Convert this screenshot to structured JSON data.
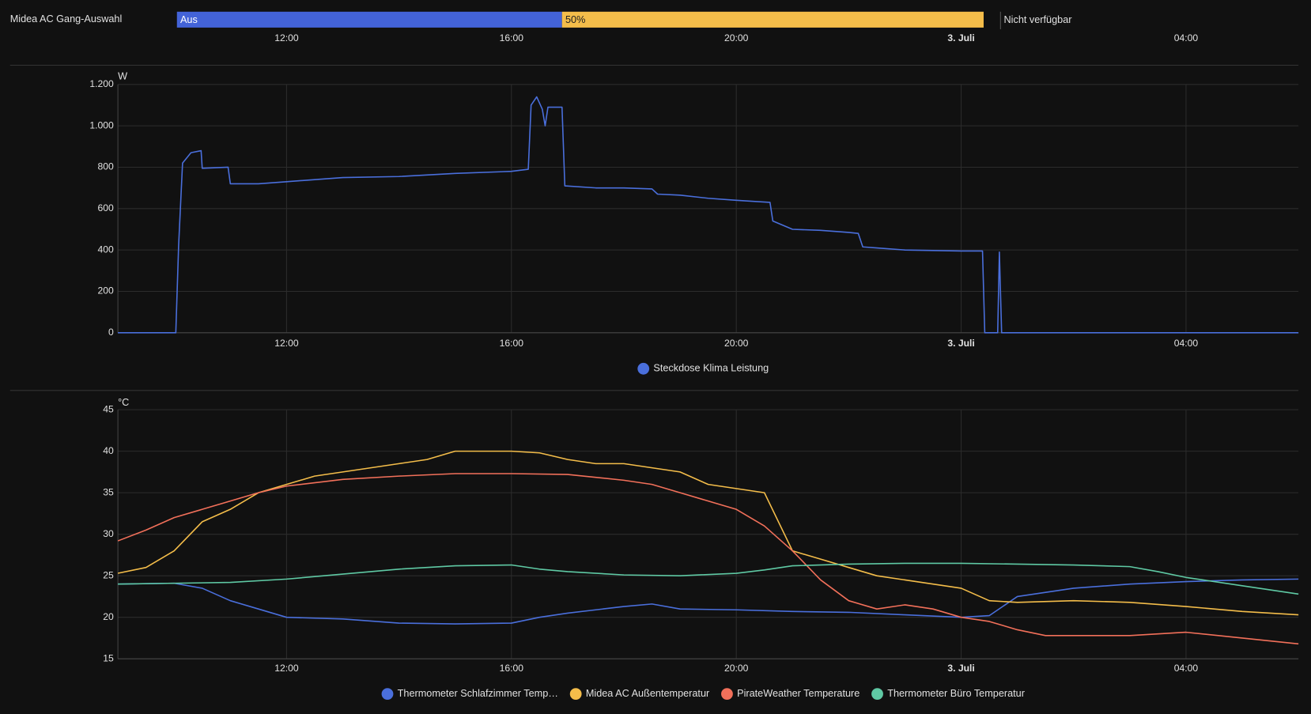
{
  "chart_data": [
    {
      "type": "timeline",
      "title": "Midea AC Gang-Auswahl",
      "xlim": [
        9,
        30
      ],
      "xticks": [
        {
          "value": 12,
          "label": "12:00"
        },
        {
          "value": 16,
          "label": "16:00"
        },
        {
          "value": 20,
          "label": "20:00"
        },
        {
          "value": 24,
          "label": "3. Juli"
        },
        {
          "value": 28,
          "label": "04:00"
        }
      ],
      "segments": [
        {
          "label": "Aus",
          "start": 10.05,
          "end": 16.9,
          "color": "#4363d8"
        },
        {
          "label": "50%",
          "start": 16.9,
          "end": 24.4,
          "color": "#f4bd4a"
        },
        {
          "label": "Nicht verfügbar",
          "start": 24.7
        }
      ]
    },
    {
      "type": "line",
      "y_label": "W",
      "xlim": [
        9,
        30
      ],
      "ylim": [
        0,
        1200
      ],
      "grid": true,
      "xticks": [
        {
          "value": 12,
          "label": "12:00"
        },
        {
          "value": 16,
          "label": "16:00"
        },
        {
          "value": 20,
          "label": "20:00"
        },
        {
          "value": 24,
          "label": "3. Juli"
        },
        {
          "value": 28,
          "label": "04:00"
        }
      ],
      "yticks": [
        0,
        200,
        400,
        600,
        800,
        {
          "value": 1000,
          "label": "1.000"
        },
        {
          "value": 1200,
          "label": "1.200"
        }
      ],
      "series": [
        {
          "name": "Steckdose Klima Leistung",
          "color": "#4a6fdc",
          "x": [
            9,
            10.03,
            10.08,
            10.15,
            10.3,
            10.48,
            10.5,
            10.96,
            11.0,
            11.5,
            12,
            12.5,
            13,
            14,
            15,
            16,
            16.3,
            16.35,
            16.45,
            16.55,
            16.6,
            16.65,
            16.9,
            16.95,
            17.5,
            18,
            18.5,
            18.6,
            19,
            19.5,
            20,
            20.6,
            20.65,
            21,
            21.5,
            22,
            22.17,
            22.25,
            22.5,
            23,
            24,
            24.38,
            24.42,
            24.65,
            24.68,
            24.72,
            26,
            28,
            30
          ],
          "values": [
            0,
            0,
            420,
            820,
            870,
            880,
            795,
            800,
            720,
            720,
            730,
            740,
            750,
            755,
            770,
            780,
            790,
            1100,
            1140,
            1080,
            1000,
            1090,
            1090,
            710,
            700,
            700,
            695,
            670,
            665,
            650,
            640,
            630,
            540,
            500,
            495,
            485,
            480,
            415,
            410,
            400,
            395,
            395,
            0,
            0,
            390,
            0,
            0,
            0,
            0
          ]
        }
      ]
    },
    {
      "type": "line",
      "y_label": "°C",
      "xlim": [
        9,
        30
      ],
      "ylim": [
        15,
        45
      ],
      "grid": true,
      "xticks": [
        {
          "value": 12,
          "label": "12:00"
        },
        {
          "value": 16,
          "label": "16:00"
        },
        {
          "value": 20,
          "label": "20:00"
        },
        {
          "value": 24,
          "label": "3. Juli"
        },
        {
          "value": 28,
          "label": "04:00"
        }
      ],
      "yticks": [
        15,
        20,
        25,
        30,
        35,
        40,
        45
      ],
      "series": [
        {
          "name": "Thermometer Schlafzimmer Temp…",
          "color": "#4a6fdc",
          "x": [
            9,
            10,
            10.5,
            11,
            11.5,
            12,
            13,
            14,
            15,
            16,
            16.5,
            17,
            18,
            18.5,
            19,
            20,
            21,
            22,
            23,
            24,
            24.5,
            25,
            26,
            27,
            28,
            29,
            30
          ],
          "values": [
            24,
            24.1,
            23.5,
            22,
            21,
            20,
            19.8,
            19.3,
            19.2,
            19.3,
            20,
            20.5,
            21.3,
            21.6,
            21,
            20.9,
            20.7,
            20.6,
            20.3,
            20,
            20.2,
            22.5,
            23.5,
            24,
            24.3,
            24.5,
            24.6
          ]
        },
        {
          "name": "Midea AC Außentemperatur",
          "color": "#f4bd4a",
          "x": [
            9,
            9.5,
            10,
            10.5,
            11,
            11.5,
            12,
            12.5,
            13,
            13.5,
            14,
            14.5,
            15,
            15.5,
            16,
            16.5,
            17,
            17.5,
            18,
            18.5,
            19,
            19.5,
            20,
            20.5,
            21,
            21.5,
            22,
            22.5,
            23,
            23.5,
            24,
            24.5,
            25,
            26,
            27,
            28,
            29,
            30
          ],
          "values": [
            25.3,
            26,
            28,
            31.5,
            33,
            35,
            36,
            37,
            37.5,
            38,
            38.5,
            39,
            40,
            40,
            40,
            39.8,
            39,
            38.5,
            38.5,
            38,
            37.5,
            36,
            35.5,
            35,
            28,
            27,
            26,
            25,
            24.5,
            24,
            23.5,
            22,
            21.8,
            22,
            21.8,
            21.3,
            20.7,
            20.3
          ]
        },
        {
          "name": "PirateWeather Temperature",
          "color": "#f2705a",
          "x": [
            9,
            9.5,
            10,
            10.5,
            11,
            11.5,
            12,
            13,
            14,
            15,
            16,
            17,
            18,
            18.5,
            19,
            19.5,
            20,
            20.5,
            21,
            21.5,
            22,
            22.5,
            23,
            23.5,
            24,
            24.5,
            25,
            25.5,
            26,
            27,
            28,
            29,
            30
          ],
          "values": [
            29.2,
            30.5,
            32,
            33,
            34,
            35,
            35.8,
            36.6,
            37,
            37.3,
            37.3,
            37.2,
            36.5,
            36,
            35,
            34,
            33,
            31,
            28,
            24.5,
            22,
            21,
            21.5,
            21,
            20,
            19.5,
            18.5,
            17.8,
            17.8,
            17.8,
            18.2,
            17.5,
            16.8
          ]
        },
        {
          "name": "Thermometer Büro Temperatur",
          "color": "#5fc9a4",
          "x": [
            9,
            10,
            11,
            12,
            13,
            14,
            15,
            16,
            16.5,
            17,
            18,
            19,
            20,
            20.5,
            21,
            22,
            23,
            24,
            25,
            26,
            27,
            27.5,
            28,
            29,
            30
          ],
          "values": [
            24,
            24.1,
            24.2,
            24.6,
            25.2,
            25.8,
            26.2,
            26.3,
            25.8,
            25.5,
            25.1,
            25,
            25.3,
            25.7,
            26.2,
            26.4,
            26.5,
            26.5,
            26.4,
            26.3,
            26.1,
            25.5,
            24.8,
            23.8,
            22.8
          ]
        }
      ]
    }
  ]
}
